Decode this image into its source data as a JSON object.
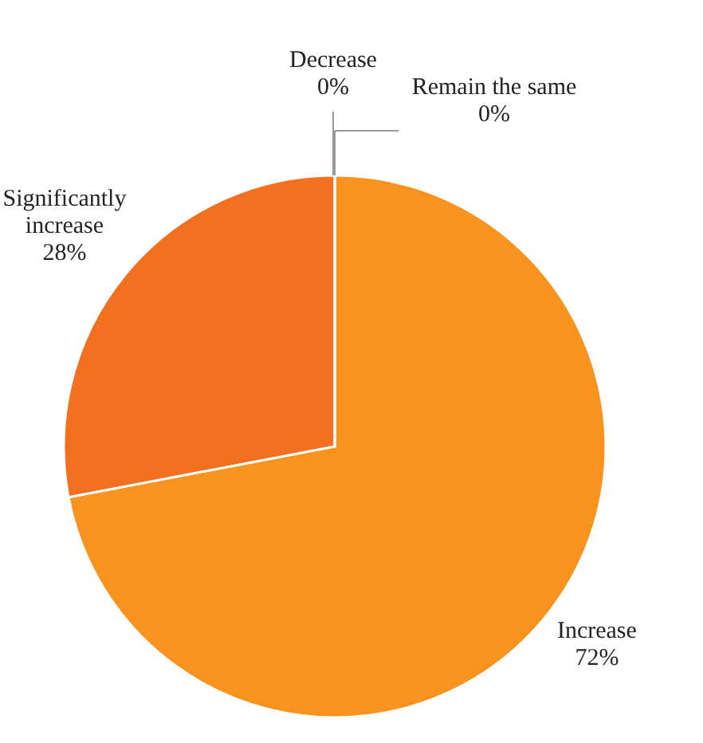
{
  "chart_data": {
    "type": "pie",
    "categories": [
      "Remain the same",
      "Increase",
      "Significantly increase",
      "Decrease"
    ],
    "values": [
      0,
      72,
      28,
      0
    ],
    "colors": [
      "#fbb040",
      "#f7931e",
      "#f37021",
      "#e35a1a"
    ],
    "value_labels": [
      "0%",
      "72%",
      "28%",
      "0%"
    ]
  }
}
